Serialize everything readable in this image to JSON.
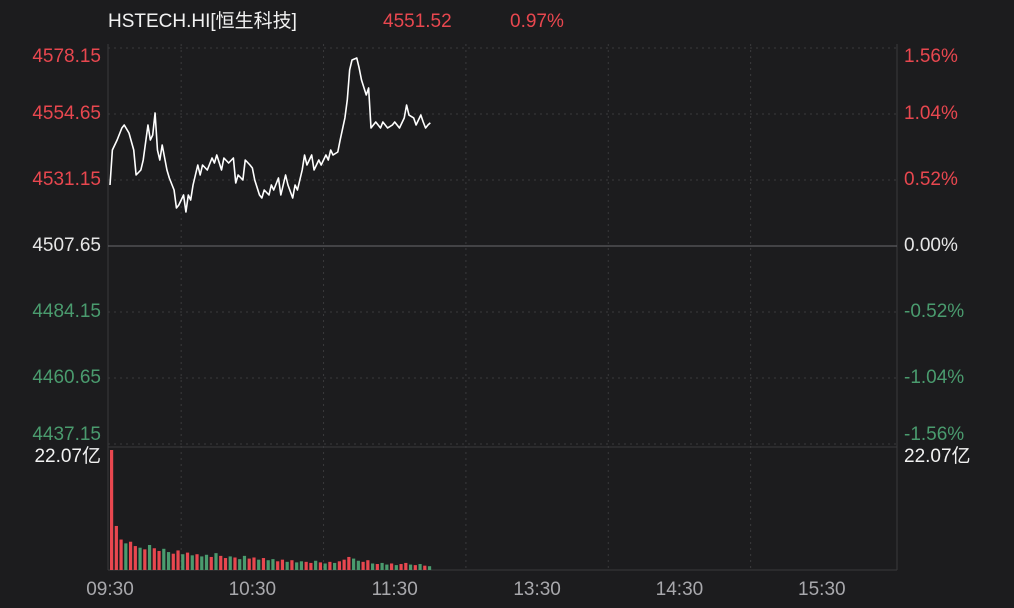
{
  "chart_data": {
    "type": "line",
    "title": "HSTECH.HI[恒生科技]",
    "last_price": 4551.52,
    "change": {
      "value": 0.97,
      "label": "0.97%"
    },
    "xlim": [
      0,
      330
    ],
    "xticks": [
      {
        "value": 0,
        "label": "09:30"
      },
      {
        "value": 60,
        "label": "10:30"
      },
      {
        "value": 120,
        "label": "11:30"
      },
      {
        "value": 180,
        "label": "13:30"
      },
      {
        "value": 240,
        "label": "14:30"
      },
      {
        "value": 300,
        "label": "15:30"
      }
    ],
    "xgrid": [
      30,
      90,
      150,
      210,
      270
    ],
    "ylim": [
      4437.15,
      4578.15
    ],
    "yticks": [
      4578.15,
      4554.65,
      4531.15,
      4507.65,
      4484.15,
      4460.65,
      4437.15
    ],
    "y2lim": [
      -1.56,
      1.56
    ],
    "y2ticks": [
      {
        "value": 1.56,
        "label": "1.56%"
      },
      {
        "value": 1.04,
        "label": "1.04%"
      },
      {
        "value": 0.52,
        "label": "0.52%"
      },
      {
        "value": 0,
        "label": "0.00%"
      },
      {
        "value": -0.52,
        "label": "-0.52%"
      },
      {
        "value": -1.04,
        "label": "-1.04%"
      },
      {
        "value": -1.56,
        "label": "-1.56%"
      }
    ],
    "grid": true,
    "up_color": "#e8474f",
    "down_color": "#4a9b6e",
    "flat_color": "#e6e6e6",
    "series": [
      {
        "color": "#ffffff",
        "x": [
          0,
          1,
          3,
          5,
          6,
          8,
          10,
          11,
          13,
          14,
          16,
          17,
          18,
          19,
          20,
          21,
          22,
          24,
          25,
          27,
          28,
          29,
          31,
          32,
          33,
          34,
          35,
          37,
          38,
          39,
          41,
          43,
          44,
          45,
          47,
          48,
          50,
          52,
          53,
          54,
          56,
          57,
          59,
          60,
          61,
          63,
          64,
          65,
          67,
          68,
          69,
          71,
          72,
          74,
          75,
          77,
          78,
          79,
          81,
          82,
          83,
          85,
          86,
          88,
          89,
          91,
          92,
          93,
          94,
          96,
          97,
          99,
          100,
          101,
          102,
          104,
          105,
          106,
          108,
          109,
          110,
          112,
          114,
          115,
          117,
          119,
          120,
          122,
          124,
          125,
          126,
          128,
          129,
          131,
          132,
          133,
          134,
          135
        ],
        "values": [
          4529.37,
          4541.83,
          4545.39,
          4549.67,
          4550.73,
          4547.88,
          4541.83,
          4532.93,
          4534.71,
          4538.27,
          4550.73,
          4545.39,
          4547.17,
          4555.01,
          4541.83,
          4538.27,
          4543.61,
          4534.71,
          4531.86,
          4527.59,
          4521.18,
          4522.25,
          4525.81,
          4519.76,
          4525.81,
          4524.03,
          4529.37,
          4536.49,
          4532.93,
          4536.49,
          4534.71,
          4538.98,
          4537.2,
          4540.05,
          4534.71,
          4538.98,
          4537.2,
          4538.98,
          4530.08,
          4532.93,
          4531.15,
          4538.27,
          4536.49,
          4535.42,
          4531.15,
          4525.81,
          4524.74,
          4527.59,
          4525.81,
          4529.37,
          4527.59,
          4531.86,
          4525.81,
          4532.93,
          4529.37,
          4524.74,
          4529.37,
          4527.59,
          4534.71,
          4540.05,
          4536.49,
          4540.05,
          4534.71,
          4538.27,
          4536.49,
          4540.05,
          4538.27,
          4541.83,
          4540.05,
          4541.12,
          4545.39,
          4553.23,
          4559.63,
          4570.32,
          4573.88,
          4574.59,
          4571.03,
          4566.76,
          4561.42,
          4563.91,
          4549.67,
          4551.8,
          4549.67,
          4551.8,
          4549.67,
          4550.73,
          4551.8,
          4549.67,
          4553.23,
          4557.85,
          4554.29,
          4553.23,
          4550.73,
          4554.29,
          4551.8,
          4549.67,
          4550.73,
          4551.52
        ]
      }
    ],
    "volume": {
      "type": "bar",
      "ylim": [
        0,
        22.07
      ],
      "yticks": [
        {
          "value": 22.07,
          "label": "22.07亿"
        }
      ],
      "x": [
        0,
        2,
        4,
        6,
        8,
        10,
        12,
        14,
        16,
        18,
        20,
        22,
        24,
        26,
        28,
        30,
        32,
        34,
        36,
        38,
        40,
        42,
        44,
        46,
        48,
        50,
        52,
        54,
        56,
        58,
        60,
        62,
        64,
        66,
        68,
        70,
        72,
        74,
        76,
        78,
        80,
        82,
        84,
        86,
        88,
        90,
        92,
        94,
        96,
        98,
        100,
        102,
        104,
        106,
        108,
        110,
        112,
        114,
        116,
        118,
        120,
        122,
        124,
        126,
        128,
        130,
        132,
        134
      ],
      "values": [
        22.07,
        8.1,
        5.6,
        4.9,
        5.2,
        4.4,
        4.1,
        3.8,
        4.6,
        4.0,
        3.5,
        3.9,
        3.3,
        3.0,
        3.6,
        2.9,
        3.2,
        2.7,
        2.9,
        2.5,
        2.8,
        2.4,
        3.1,
        2.6,
        2.2,
        2.5,
        2.3,
        2.0,
        2.6,
        2.1,
        2.3,
        1.9,
        2.2,
        1.8,
        2.0,
        1.6,
        1.9,
        1.5,
        1.8,
        1.4,
        1.6,
        1.5,
        1.3,
        1.7,
        1.4,
        1.2,
        1.5,
        1.3,
        1.6,
        1.9,
        2.4,
        2.1,
        1.7,
        1.5,
        1.8,
        1.2,
        1.1,
        1.3,
        1.0,
        1.2,
        0.9,
        1.1,
        1.3,
        1.0,
        0.9,
        1.1,
        0.8,
        0.7
      ],
      "colors": [
        "#e8474f",
        "#e8474f",
        "#e8474f",
        "#4a9b6e",
        "#e8474f",
        "#e8474f",
        "#4a9b6e",
        "#e8474f",
        "#4a9b6e",
        "#e8474f",
        "#e8474f",
        "#4a9b6e",
        "#4a9b6e",
        "#e8474f",
        "#e8474f",
        "#4a9b6e",
        "#e8474f",
        "#4a9b6e",
        "#e8474f",
        "#4a9b6e",
        "#4a9b6e",
        "#e8474f",
        "#4a9b6e",
        "#e8474f",
        "#e8474f",
        "#4a9b6e",
        "#e8474f",
        "#4a9b6e",
        "#4a9b6e",
        "#e8474f",
        "#e8474f",
        "#4a9b6e",
        "#e8474f",
        "#4a9b6e",
        "#4a9b6e",
        "#e8474f",
        "#e8474f",
        "#4a9b6e",
        "#e8474f",
        "#4a9b6e",
        "#4a9b6e",
        "#e8474f",
        "#e8474f",
        "#4a9b6e",
        "#e8474f",
        "#4a9b6e",
        "#e8474f",
        "#4a9b6e",
        "#e8474f",
        "#e8474f",
        "#e8474f",
        "#4a9b6e",
        "#4a9b6e",
        "#e8474f",
        "#e8474f",
        "#4a9b6e",
        "#e8474f",
        "#4a9b6e",
        "#4a9b6e",
        "#e8474f",
        "#4a9b6e",
        "#e8474f",
        "#e8474f",
        "#4a9b6e",
        "#e8474f",
        "#4a9b6e",
        "#e8474f",
        "#4a9b6e"
      ]
    }
  }
}
